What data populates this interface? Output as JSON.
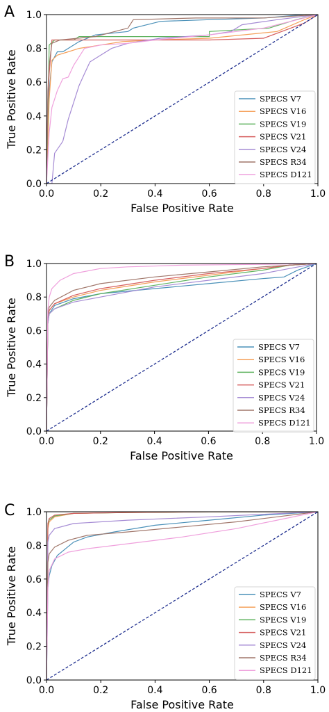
{
  "colors": {
    "series": [
      "#4a90b8",
      "#f5a05a",
      "#5fb35f",
      "#d65f5f",
      "#a58bd4",
      "#a0766a",
      "#ef9fdc"
    ],
    "diagonal": "#1f2f8f"
  },
  "chart_data": [
    {
      "type": "line",
      "panel_label": "A",
      "xlabel": "False Positive Rate",
      "ylabel": "True Positive Rate",
      "xlim": [
        0,
        1
      ],
      "ylim": [
        0,
        1
      ],
      "xticks": [
        "0.0",
        "0.2",
        "0.4",
        "0.6",
        "0.8",
        "1.0"
      ],
      "yticks": [
        "0.0",
        "0.2",
        "0.4",
        "0.6",
        "0.8",
        "1.0"
      ],
      "legend_position": "lower right",
      "grid": false,
      "diagonal": [
        [
          0,
          0
        ],
        [
          1,
          1
        ]
      ],
      "series": [
        {
          "name": "SPECS V7",
          "points": [
            [
              0,
              0
            ],
            [
              0.01,
              0.55
            ],
            [
              0.02,
              0.72
            ],
            [
              0.04,
              0.78
            ],
            [
              0.06,
              0.78
            ],
            [
              0.1,
              0.82
            ],
            [
              0.12,
              0.84
            ],
            [
              0.18,
              0.88
            ],
            [
              0.3,
              0.9
            ],
            [
              0.32,
              0.92
            ],
            [
              0.42,
              0.96
            ],
            [
              0.6,
              0.97
            ],
            [
              0.8,
              0.98
            ],
            [
              0.95,
              1
            ],
            [
              1,
              1
            ]
          ]
        },
        {
          "name": "SPECS V16",
          "points": [
            [
              0,
              0
            ],
            [
              0.01,
              0.5
            ],
            [
              0.02,
              0.73
            ],
            [
              0.04,
              0.76
            ],
            [
              0.08,
              0.78
            ],
            [
              0.12,
              0.8
            ],
            [
              0.2,
              0.82
            ],
            [
              0.28,
              0.84
            ],
            [
              0.4,
              0.85
            ],
            [
              0.6,
              0.86
            ],
            [
              0.85,
              0.9
            ],
            [
              0.95,
              0.97
            ],
            [
              1,
              1
            ]
          ]
        },
        {
          "name": "SPECS V19",
          "points": [
            [
              0,
              0
            ],
            [
              0.01,
              0.82
            ],
            [
              0.03,
              0.85
            ],
            [
              0.1,
              0.85
            ],
            [
              0.12,
              0.87
            ],
            [
              0.4,
              0.87
            ],
            [
              0.6,
              0.87
            ],
            [
              0.6,
              0.9
            ],
            [
              0.82,
              0.92
            ],
            [
              0.92,
              0.97
            ],
            [
              1,
              1
            ]
          ]
        },
        {
          "name": "SPECS V21",
          "points": [
            [
              0,
              0
            ],
            [
              0.005,
              0.5
            ],
            [
              0.01,
              0.65
            ],
            [
              0.02,
              0.85
            ],
            [
              0.2,
              0.85
            ],
            [
              0.6,
              0.85
            ],
            [
              0.8,
              0.86
            ],
            [
              0.95,
              0.95
            ],
            [
              1,
              1
            ]
          ]
        },
        {
          "name": "SPECS V24",
          "points": [
            [
              0,
              0
            ],
            [
              0.02,
              0
            ],
            [
              0.03,
              0.18
            ],
            [
              0.06,
              0.25
            ],
            [
              0.08,
              0.38
            ],
            [
              0.1,
              0.48
            ],
            [
              0.12,
              0.58
            ],
            [
              0.14,
              0.65
            ],
            [
              0.16,
              0.72
            ],
            [
              0.2,
              0.76
            ],
            [
              0.24,
              0.8
            ],
            [
              0.3,
              0.83
            ],
            [
              0.42,
              0.86
            ],
            [
              0.6,
              0.88
            ],
            [
              0.68,
              0.9
            ],
            [
              0.72,
              0.94
            ],
            [
              0.85,
              0.97
            ],
            [
              1,
              1
            ]
          ]
        },
        {
          "name": "SPECS R34",
          "points": [
            [
              0,
              0
            ],
            [
              0.005,
              0.55
            ],
            [
              0.01,
              0.7
            ],
            [
              0.02,
              0.83
            ],
            [
              0.05,
              0.85
            ],
            [
              0.18,
              0.87
            ],
            [
              0.3,
              0.92
            ],
            [
              0.32,
              0.97
            ],
            [
              0.55,
              0.98
            ],
            [
              0.8,
              0.98
            ],
            [
              1,
              1
            ]
          ]
        },
        {
          "name": "SPECS D121",
          "points": [
            [
              0,
              0
            ],
            [
              0.01,
              0.3
            ],
            [
              0.02,
              0.45
            ],
            [
              0.04,
              0.55
            ],
            [
              0.06,
              0.62
            ],
            [
              0.08,
              0.63
            ],
            [
              0.1,
              0.7
            ],
            [
              0.12,
              0.75
            ],
            [
              0.14,
              0.8
            ],
            [
              0.2,
              0.82
            ],
            [
              0.3,
              0.83
            ],
            [
              0.4,
              0.85
            ],
            [
              0.6,
              0.88
            ],
            [
              0.8,
              0.92
            ],
            [
              1,
              1
            ]
          ]
        }
      ]
    },
    {
      "type": "line",
      "panel_label": "B",
      "xlabel": "False Positive Rate",
      "ylabel": "True Positive Rate",
      "xlim": [
        0,
        1
      ],
      "ylim": [
        0,
        1
      ],
      "xticks": [
        "0.0",
        "0.2",
        "0.4",
        "0.6",
        "0.8",
        "1.0"
      ],
      "yticks": [
        "0.0",
        "0.2",
        "0.4",
        "0.6",
        "0.8",
        "1.0"
      ],
      "legend_position": "lower right",
      "grid": false,
      "diagonal": [
        [
          0,
          0
        ],
        [
          1,
          1
        ]
      ],
      "series": [
        {
          "name": "SPECS V7",
          "points": [
            [
              0,
              0
            ],
            [
              0.005,
              0.64
            ],
            [
              0.01,
              0.7
            ],
            [
              0.03,
              0.75
            ],
            [
              0.1,
              0.79
            ],
            [
              0.2,
              0.82
            ],
            [
              0.4,
              0.85
            ],
            [
              0.6,
              0.88
            ],
            [
              0.8,
              0.91
            ],
            [
              0.88,
              0.92
            ],
            [
              0.93,
              0.96
            ],
            [
              1,
              1
            ]
          ]
        },
        {
          "name": "SPECS V16",
          "points": [
            [
              0,
              0
            ],
            [
              0.005,
              0.65
            ],
            [
              0.01,
              0.72
            ],
            [
              0.03,
              0.76
            ],
            [
              0.1,
              0.8
            ],
            [
              0.2,
              0.84
            ],
            [
              0.4,
              0.89
            ],
            [
              0.6,
              0.93
            ],
            [
              0.8,
              0.97
            ],
            [
              0.9,
              0.99
            ],
            [
              1,
              1
            ]
          ]
        },
        {
          "name": "SPECS V19",
          "points": [
            [
              0,
              0
            ],
            [
              0.005,
              0.65
            ],
            [
              0.01,
              0.7
            ],
            [
              0.03,
              0.73
            ],
            [
              0.1,
              0.78
            ],
            [
              0.2,
              0.82
            ],
            [
              0.4,
              0.87
            ],
            [
              0.6,
              0.92
            ],
            [
              0.8,
              0.96
            ],
            [
              0.9,
              0.99
            ],
            [
              1,
              1
            ]
          ]
        },
        {
          "name": "SPECS V21",
          "points": [
            [
              0,
              0
            ],
            [
              0.005,
              0.66
            ],
            [
              0.01,
              0.72
            ],
            [
              0.03,
              0.76
            ],
            [
              0.1,
              0.81
            ],
            [
              0.2,
              0.85
            ],
            [
              0.4,
              0.9
            ],
            [
              0.6,
              0.94
            ],
            [
              0.8,
              0.97
            ],
            [
              0.9,
              0.99
            ],
            [
              1,
              1
            ]
          ]
        },
        {
          "name": "SPECS V24",
          "points": [
            [
              0,
              0
            ],
            [
              0.005,
              0.64
            ],
            [
              0.01,
              0.7
            ],
            [
              0.03,
              0.73
            ],
            [
              0.1,
              0.77
            ],
            [
              0.2,
              0.8
            ],
            [
              0.4,
              0.86
            ],
            [
              0.6,
              0.9
            ],
            [
              0.8,
              0.94
            ],
            [
              0.9,
              0.97
            ],
            [
              1,
              1
            ]
          ]
        },
        {
          "name": "SPECS R34",
          "points": [
            [
              0,
              0
            ],
            [
              0.005,
              0.68
            ],
            [
              0.01,
              0.74
            ],
            [
              0.03,
              0.78
            ],
            [
              0.1,
              0.84
            ],
            [
              0.2,
              0.88
            ],
            [
              0.4,
              0.92
            ],
            [
              0.6,
              0.95
            ],
            [
              0.8,
              0.98
            ],
            [
              0.9,
              0.99
            ],
            [
              1,
              1
            ]
          ]
        },
        {
          "name": "SPECS D121",
          "points": [
            [
              0,
              0
            ],
            [
              0.005,
              0.72
            ],
            [
              0.01,
              0.8
            ],
            [
              0.02,
              0.85
            ],
            [
              0.05,
              0.9
            ],
            [
              0.1,
              0.94
            ],
            [
              0.2,
              0.97
            ],
            [
              0.3,
              0.98
            ],
            [
              0.5,
              0.99
            ],
            [
              0.8,
              0.995
            ],
            [
              1,
              1
            ]
          ]
        }
      ]
    },
    {
      "type": "line",
      "panel_label": "C",
      "xlabel": "False Positive Rate",
      "ylabel": "True Positive Rate",
      "xlim": [
        0,
        1
      ],
      "ylim": [
        0,
        1
      ],
      "xticks": [
        "0.0",
        "0.2",
        "0.4",
        "0.6",
        "0.8",
        "1.0"
      ],
      "yticks": [
        "0.0",
        "0.2",
        "0.4",
        "0.6",
        "0.8",
        "1.0"
      ],
      "legend_position": "lower right",
      "grid": false,
      "diagonal": [
        [
          0,
          0
        ],
        [
          1,
          1
        ]
      ],
      "series": [
        {
          "name": "SPECS V7",
          "points": [
            [
              0,
              0
            ],
            [
              0.005,
              0.55
            ],
            [
              0.01,
              0.62
            ],
            [
              0.02,
              0.68
            ],
            [
              0.04,
              0.74
            ],
            [
              0.07,
              0.78
            ],
            [
              0.1,
              0.82
            ],
            [
              0.15,
              0.85
            ],
            [
              0.25,
              0.88
            ],
            [
              0.4,
              0.92
            ],
            [
              0.6,
              0.95
            ],
            [
              0.8,
              0.98
            ],
            [
              1,
              1
            ]
          ]
        },
        {
          "name": "SPECS V16",
          "points": [
            [
              0,
              0
            ],
            [
              0.005,
              0.9
            ],
            [
              0.01,
              0.94
            ],
            [
              0.03,
              0.97
            ],
            [
              0.1,
              0.99
            ],
            [
              0.3,
              0.995
            ],
            [
              0.6,
              1
            ],
            [
              1,
              1
            ]
          ]
        },
        {
          "name": "SPECS V19",
          "points": [
            [
              0,
              0
            ],
            [
              0.005,
              0.92
            ],
            [
              0.01,
              0.95
            ],
            [
              0.03,
              0.975
            ],
            [
              0.1,
              0.99
            ],
            [
              0.3,
              0.995
            ],
            [
              0.6,
              1
            ],
            [
              1,
              1
            ]
          ]
        },
        {
          "name": "SPECS V21",
          "points": [
            [
              0,
              0
            ],
            [
              0.005,
              0.93
            ],
            [
              0.01,
              0.96
            ],
            [
              0.03,
              0.98
            ],
            [
              0.1,
              0.99
            ],
            [
              0.3,
              0.996
            ],
            [
              0.6,
              1
            ],
            [
              1,
              1
            ]
          ]
        },
        {
          "name": "SPECS V24",
          "points": [
            [
              0,
              0
            ],
            [
              0.005,
              0.82
            ],
            [
              0.01,
              0.86
            ],
            [
              0.03,
              0.9
            ],
            [
              0.1,
              0.93
            ],
            [
              0.3,
              0.95
            ],
            [
              0.6,
              0.97
            ],
            [
              0.8,
              0.985
            ],
            [
              1,
              1
            ]
          ]
        },
        {
          "name": "SPECS R34",
          "points": [
            [
              0,
              0
            ],
            [
              0.005,
              0.7
            ],
            [
              0.01,
              0.75
            ],
            [
              0.03,
              0.79
            ],
            [
              0.08,
              0.83
            ],
            [
              0.15,
              0.86
            ],
            [
              0.3,
              0.88
            ],
            [
              0.5,
              0.91
            ],
            [
              0.7,
              0.94
            ],
            [
              0.85,
              0.97
            ],
            [
              1,
              1
            ]
          ]
        },
        {
          "name": "SPECS D121",
          "points": [
            [
              0,
              0
            ],
            [
              0.005,
              0.55
            ],
            [
              0.01,
              0.65
            ],
            [
              0.03,
              0.72
            ],
            [
              0.08,
              0.76
            ],
            [
              0.15,
              0.78
            ],
            [
              0.3,
              0.81
            ],
            [
              0.5,
              0.85
            ],
            [
              0.7,
              0.9
            ],
            [
              0.85,
              0.95
            ],
            [
              1,
              1
            ]
          ]
        }
      ]
    }
  ]
}
